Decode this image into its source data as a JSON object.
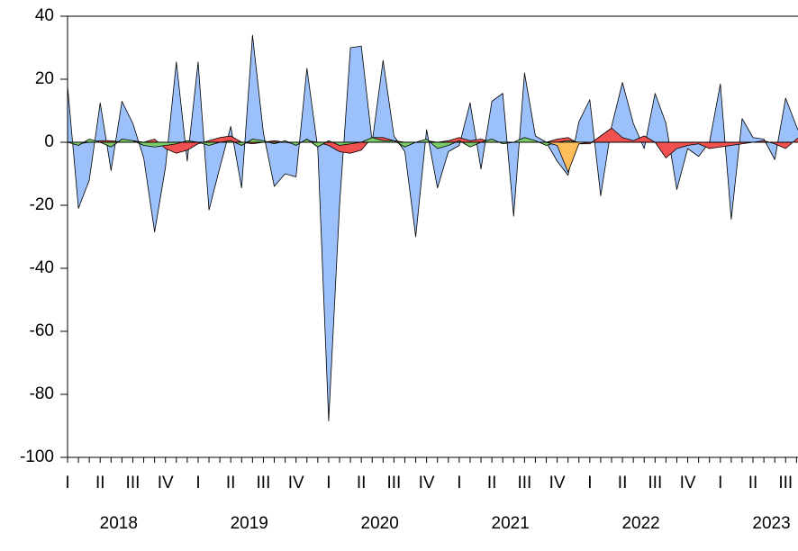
{
  "chart_data": {
    "type": "area",
    "categories": [
      "I",
      null,
      null,
      "II",
      null,
      null,
      "III",
      null,
      null,
      "IV",
      null,
      null,
      "I",
      null,
      null,
      "II",
      null,
      null,
      "III",
      null,
      null,
      "IV",
      null,
      null,
      "I",
      null,
      null,
      "II",
      null,
      null,
      "III",
      null,
      null,
      "IV",
      null,
      null,
      "I",
      null,
      null,
      "II",
      null,
      null,
      "III",
      null,
      null,
      "IV",
      null,
      null,
      "I",
      null,
      null,
      "II",
      null,
      null,
      "III",
      null,
      null,
      "IV",
      null,
      null,
      "I",
      null,
      null,
      "II",
      null,
      null,
      "III",
      null,
      null
    ],
    "year_labels": [
      "2018",
      "2019",
      "2020",
      "2021",
      "2022",
      "2023"
    ],
    "series": [
      {
        "color": "#9cc0fa",
        "values": [
          18,
          -21,
          -12,
          12.5,
          -9,
          13,
          6,
          -5,
          -28.5,
          -8,
          25.5,
          -6,
          25.5,
          -21.5,
          -8,
          5,
          -14.5,
          34,
          3,
          -14,
          -10,
          -11,
          23.5,
          -2,
          -88.5,
          -20,
          30,
          30.5,
          0,
          26,
          2,
          -3,
          -30,
          4,
          -14.5,
          -3,
          -1,
          12.5,
          -8.5,
          13,
          15.5,
          -23.5,
          22,
          2,
          0,
          -6,
          -10.5,
          6.5,
          13.5,
          -17,
          5,
          19,
          6,
          -2,
          15.5,
          6,
          -15,
          -2,
          -4.5,
          0,
          18.5,
          -24.5,
          7.5,
          1.5,
          1,
          -5.5,
          14,
          5,
          -3
        ]
      },
      {
        "color": "#f05050",
        "values": [
          0,
          -0.5,
          0,
          0.5,
          0.5,
          0,
          0.5,
          0,
          1,
          -2,
          -3.5,
          -2.5,
          -0.5,
          0.5,
          1.5,
          2,
          0,
          -0.5,
          0,
          0.5,
          0,
          -0.5,
          0.5,
          0,
          -1,
          -3,
          -3.5,
          -2.5,
          1.5,
          1.5,
          0.5,
          0,
          0,
          0.5,
          0,
          0.5,
          1.5,
          0.5,
          1,
          0,
          0,
          0,
          0.5,
          0,
          0,
          1,
          1.5,
          -0.5,
          -0.5,
          2,
          4.5,
          1.5,
          0.5,
          2,
          0,
          -5,
          -2,
          -1,
          -0.5,
          -2,
          -1.5,
          -1,
          -0.5,
          0,
          0.5,
          -0.5,
          -2,
          1,
          3.5
        ]
      },
      {
        "color": "#7ccc6a",
        "values": [
          0,
          -1,
          1,
          0,
          -1.5,
          1,
          0.5,
          -1,
          -1.5,
          -1,
          -0.5,
          0.5,
          0,
          -1,
          0,
          0.5,
          -1,
          1,
          0.5,
          -0.5,
          0.5,
          -1,
          1,
          -1.5,
          0.5,
          -1,
          -0.5,
          0,
          1.5,
          0.5,
          0.5,
          -1.5,
          0,
          1,
          -2,
          -1,
          0.5,
          -1.5,
          0,
          1,
          -0.5,
          0,
          1.5,
          0.5,
          -1,
          0,
          0.5,
          0,
          0,
          0,
          0,
          0,
          0,
          0,
          0,
          0,
          0,
          0,
          0,
          0,
          0,
          0,
          0,
          0,
          0,
          0,
          0,
          0,
          0
        ]
      },
      {
        "color": "#ffbe5a",
        "values": [
          0,
          0,
          0,
          0,
          0,
          0,
          0,
          0,
          0,
          0,
          0,
          0,
          0,
          0,
          0,
          0,
          0,
          0,
          0,
          0,
          0,
          0,
          0,
          0,
          0,
          0,
          0,
          0,
          0,
          0,
          0,
          0,
          0,
          0,
          0,
          0,
          0,
          0,
          0,
          0,
          0,
          0,
          0,
          0,
          0,
          -1,
          -9.5,
          -0.5,
          0,
          0,
          0,
          0,
          0,
          0,
          0,
          0,
          0,
          0,
          0,
          0,
          0,
          0,
          0,
          0,
          0,
          0,
          0,
          0,
          0
        ]
      }
    ],
    "ylim": [
      -100,
      40
    ],
    "yticks": [
      -100,
      -80,
      -60,
      -40,
      -20,
      0,
      20,
      40
    ]
  }
}
